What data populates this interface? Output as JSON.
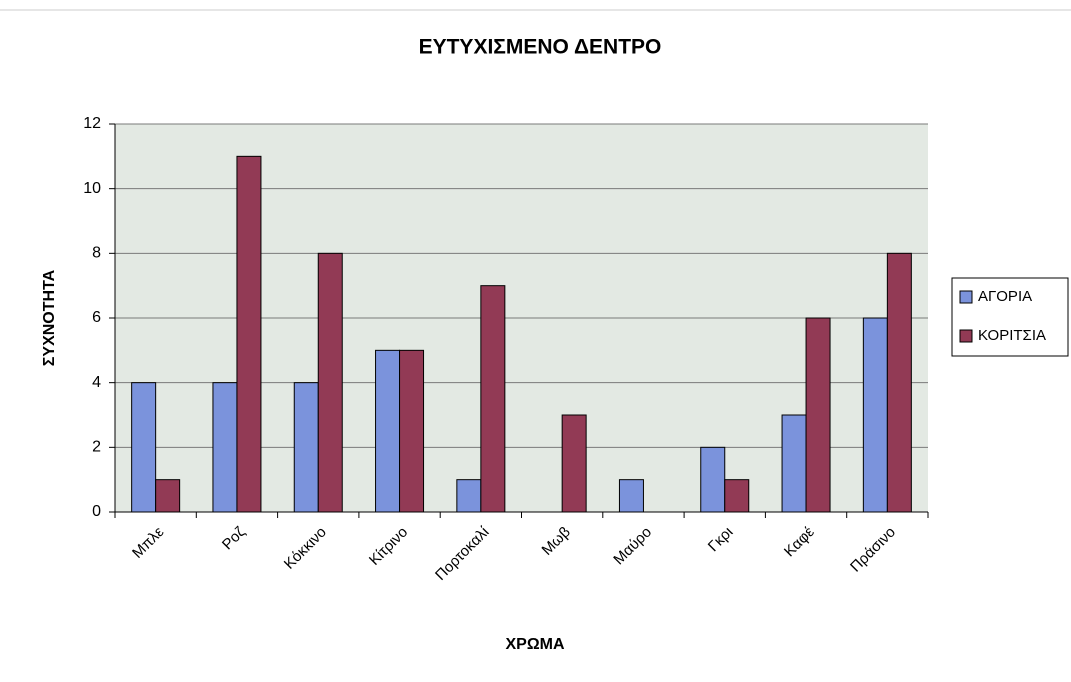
{
  "chart_data": {
    "type": "bar",
    "title": "ΕΥΤΥΧΙΣΜΕΝΟ ΔΕΝΤΡΟ",
    "x_label": "ΧΡΩΜΑ",
    "y_label": "ΣΥΧΝΟΤΗΤΑ",
    "categories": [
      "Μπλε",
      "Ροζ",
      "Κόκκινο",
      "Κίτρινο",
      "Πορτοκαλί",
      "Μωβ",
      "Μαύρο",
      "Γκρι",
      "Καφέ",
      "Πράσινο"
    ],
    "series": [
      {
        "name": "ΑΓΟΡΙΑ",
        "color": "#7b93dc",
        "values": [
          4,
          4,
          4,
          5,
          1,
          0,
          1,
          2,
          3,
          6
        ]
      },
      {
        "name": "ΚΟΡΙΤΣΙΑ",
        "color": "#923a55",
        "values": [
          1,
          11,
          8,
          5,
          7,
          3,
          0,
          1,
          6,
          8
        ]
      }
    ],
    "ylim": [
      0,
      12
    ],
    "yticks": [
      0,
      2,
      4,
      6,
      8,
      10,
      12
    ],
    "grid": true,
    "legend": "right"
  }
}
